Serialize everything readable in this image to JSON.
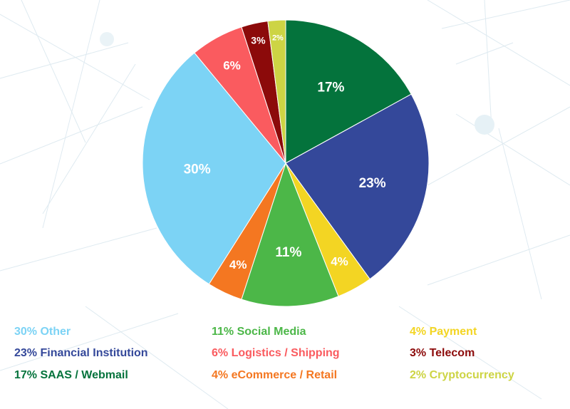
{
  "chart_data": {
    "type": "pie",
    "start": "12 o'clock",
    "direction": "clockwise",
    "slices": [
      {
        "label": "SAAS / Webmail",
        "value": 17,
        "display": "17%",
        "legend": "17% SAAS / Webmail",
        "color": "#04733c"
      },
      {
        "label": "Financial Institution",
        "value": 23,
        "display": "23%",
        "legend": "23% Financial Institution",
        "color": "#34489a"
      },
      {
        "label": "Payment",
        "value": 4,
        "display": "4%",
        "legend": "4% Payment",
        "color": "#f3d523"
      },
      {
        "label": "Social Media",
        "value": 11,
        "display": "11%",
        "legend": "11% Social Media",
        "color": "#4cb748"
      },
      {
        "label": "eCommerce / Retail",
        "value": 4,
        "display": "4%",
        "legend": "4% eCommerce / Retail",
        "color": "#f47721"
      },
      {
        "label": "Other",
        "value": 30,
        "display": "30%",
        "legend": "30% Other",
        "color": "#7cd3f5"
      },
      {
        "label": "Logistics / Shipping",
        "value": 6,
        "display": "6%",
        "legend": "6% Logistics / Shipping",
        "color": "#fa5b5f"
      },
      {
        "label": "Telecom",
        "value": 3,
        "display": "3%",
        "legend": "3% Telecom",
        "color": "#8c0a0a"
      },
      {
        "label": "Cryptocurrency",
        "value": 2,
        "display": "2%",
        "legend": "2% Cryptocurrency",
        "color": "#cdd444"
      }
    ],
    "legend_order": [
      "Other",
      "Financial Institution",
      "SAAS / Webmail",
      "Social Media",
      "Logistics / Shipping",
      "eCommerce / Retail",
      "Payment",
      "Telecom",
      "Cryptocurrency"
    ],
    "legend_placement": "bottom"
  }
}
